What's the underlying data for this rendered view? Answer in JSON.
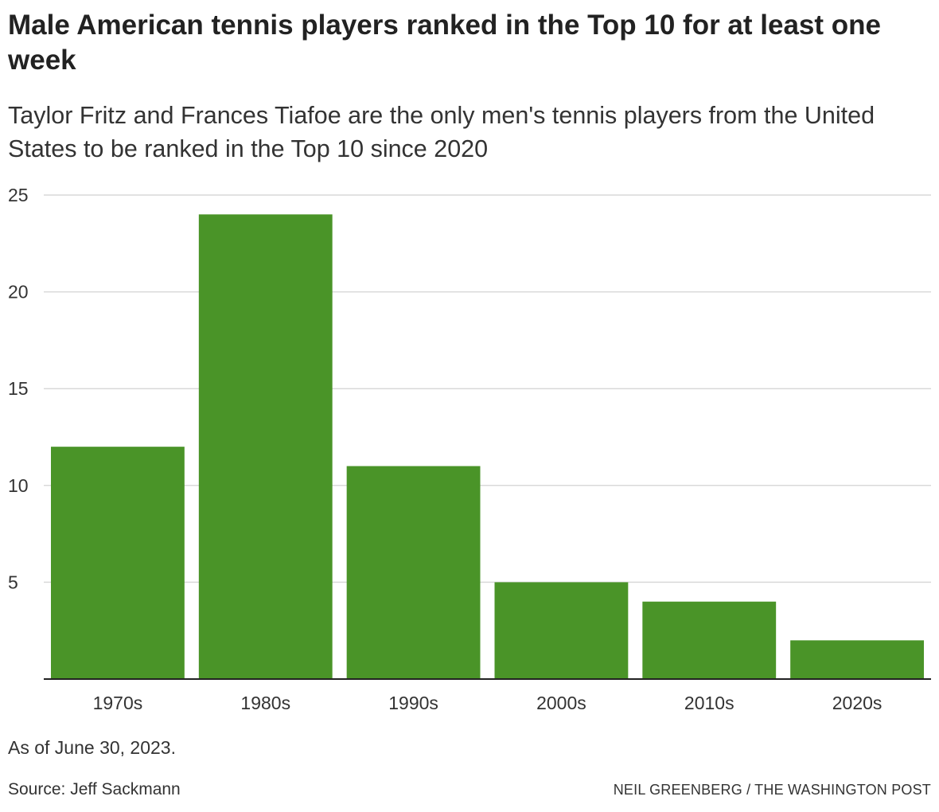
{
  "title": "Male American tennis players ranked in the Top 10 for at least one week",
  "subtitle": "Taylor Fritz and Frances Tiafoe are the only men's tennis players from the United States to be ranked in the Top 10 since 2020",
  "note": "As of June 30, 2023.",
  "source": "Source: Jeff Sackmann",
  "credit": "NEIL GREENBERG / THE WASHINGTON POST",
  "colors": {
    "bar": "#4a9428",
    "grid": "#d9d9d9",
    "axis": "#222222"
  },
  "chart_data": {
    "type": "bar",
    "categories": [
      "1970s",
      "1980s",
      "1990s",
      "2000s",
      "2010s",
      "2020s"
    ],
    "values": [
      12,
      24,
      11,
      5,
      4,
      2
    ],
    "ylim": [
      0,
      25
    ],
    "yticks": [
      5,
      10,
      15,
      20,
      25
    ],
    "xlabel": "",
    "ylabel": "",
    "grid": true
  }
}
